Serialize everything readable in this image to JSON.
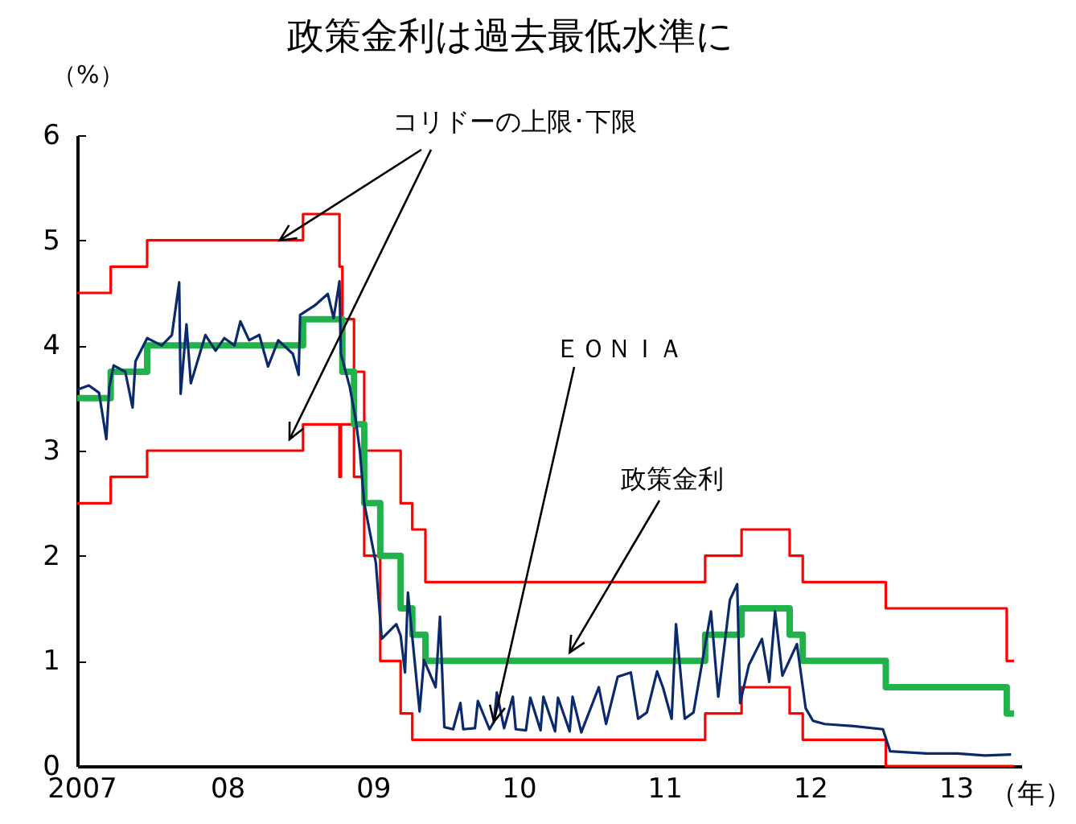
{
  "chart_data": {
    "type": "line",
    "title": "政策金利は過去最低水準に",
    "ylabel": "（%）",
    "xlabel": "（年）",
    "xlim": [
      2006.97,
      2013.45
    ],
    "ylim": [
      0,
      6
    ],
    "yticks": [
      0,
      1,
      2,
      3,
      4,
      5,
      6
    ],
    "xticks": [
      {
        "value": 2007,
        "label": "2007"
      },
      {
        "value": 2008,
        "label": "08"
      },
      {
        "value": 2009,
        "label": "09"
      },
      {
        "value": 2010,
        "label": "10"
      },
      {
        "value": 2011,
        "label": "11"
      },
      {
        "value": 2012,
        "label": "12"
      },
      {
        "value": 2013,
        "label": "13"
      }
    ],
    "grid": false,
    "annotations": [
      {
        "text": "コリドーの上限･下限",
        "x": 2008.36,
        "y": 5.0
      },
      {
        "text": "ＥＯＮＩＡ",
        "x": 2009.83,
        "y": 0.42
      },
      {
        "text": "政策金利",
        "x": 2010.35,
        "y": 1.08
      }
    ],
    "series": [
      {
        "type": "step",
        "color": "#ff0000",
        "x": [
          2006.97,
          2007.2,
          2007.45,
          2008.52,
          2008.77,
          2008.79,
          2008.87,
          2008.94,
          2009.19,
          2009.27,
          2009.36,
          2011.28,
          2011.53,
          2011.86,
          2011.95,
          2012.52,
          2013.35,
          2013.4
        ],
        "values": [
          4.5,
          4.75,
          5.0,
          5.25,
          4.75,
          4.25,
          3.75,
          3.0,
          2.5,
          2.25,
          1.75,
          2.0,
          2.25,
          2.0,
          1.75,
          1.5,
          1.0,
          1.0
        ]
      },
      {
        "type": "step",
        "color": "#ff0000",
        "x": [
          2006.97,
          2007.2,
          2007.45,
          2008.52,
          2008.77,
          2008.78,
          2008.87,
          2008.94,
          2009.05,
          2009.19,
          2009.27,
          2011.28,
          2011.53,
          2011.86,
          2011.95,
          2012.52,
          2013.4
        ],
        "values": [
          2.5,
          2.75,
          3.0,
          3.25,
          2.75,
          3.25,
          2.75,
          2.0,
          1.0,
          0.5,
          0.25,
          0.5,
          0.75,
          0.5,
          0.25,
          0,
          0
        ]
      },
      {
        "type": "step",
        "color": "#22b24c",
        "x": [
          2006.97,
          2007.2,
          2007.45,
          2008.52,
          2008.79,
          2008.87,
          2008.94,
          2009.05,
          2009.19,
          2009.27,
          2009.36,
          2011.28,
          2011.53,
          2011.86,
          2011.95,
          2012.52,
          2013.35,
          2013.4
        ],
        "values": [
          3.5,
          3.75,
          4.0,
          4.25,
          3.75,
          3.25,
          2.5,
          2.0,
          1.5,
          1.25,
          1.0,
          1.25,
          1.5,
          1.25,
          1.0,
          0.75,
          0.5,
          0.5
        ]
      },
      {
        "color": "#0b2a6b",
        "x": [
          2006.97,
          2007.05,
          2007.12,
          2007.17,
          2007.19,
          2007.22,
          2007.3,
          2007.35,
          2007.37,
          2007.45,
          2007.55,
          2007.62,
          2007.67,
          2007.68,
          2007.72,
          2007.75,
          2007.85,
          2007.92,
          2007.98,
          2008.05,
          2008.09,
          2008.15,
          2008.22,
          2008.28,
          2008.35,
          2008.45,
          2008.49,
          2008.5,
          2008.6,
          2008.69,
          2008.73,
          2008.77,
          2008.78,
          2008.84,
          2008.88,
          2008.91,
          2008.94,
          2009.02,
          2009.06,
          2009.16,
          2009.19,
          2009.22,
          2009.24,
          2009.32,
          2009.35,
          2009.43,
          2009.46,
          2009.49,
          2009.55,
          2009.6,
          2009.62,
          2009.7,
          2009.72,
          2009.8,
          2009.83,
          2009.85,
          2009.9,
          2009.96,
          2009.98,
          2010.05,
          2010.08,
          2010.15,
          2010.17,
          2010.25,
          2010.27,
          2010.35,
          2010.37,
          2010.43,
          2010.55,
          2010.6,
          2010.68,
          2010.77,
          2010.82,
          2010.88,
          2010.95,
          2010.99,
          2011.05,
          2011.08,
          2011.14,
          2011.2,
          2011.32,
          2011.37,
          2011.45,
          2011.5,
          2011.52,
          2011.58,
          2011.67,
          2011.72,
          2011.76,
          2011.81,
          2011.91,
          2011.97,
          2012.02,
          2012.1,
          2012.3,
          2012.5,
          2012.55,
          2012.8,
          2013.01,
          2013.2,
          2013.38
        ],
        "values": [
          3.58,
          3.62,
          3.55,
          3.11,
          3.6,
          3.81,
          3.75,
          3.41,
          3.85,
          4.07,
          4.0,
          4.1,
          4.6,
          3.54,
          4.2,
          3.64,
          4.1,
          3.95,
          4.07,
          4.0,
          4.23,
          4.05,
          4.1,
          3.8,
          4.05,
          3.92,
          3.72,
          4.29,
          4.38,
          4.49,
          4.26,
          4.61,
          3.92,
          3.61,
          3.31,
          3.0,
          2.5,
          1.93,
          1.21,
          1.35,
          1.24,
          0.89,
          1.65,
          0.52,
          1.01,
          0.75,
          1.42,
          0.37,
          0.35,
          0.6,
          0.35,
          0.36,
          0.62,
          0.35,
          0.42,
          0.7,
          0.36,
          0.66,
          0.35,
          0.34,
          0.65,
          0.34,
          0.66,
          0.33,
          0.65,
          0.33,
          0.66,
          0.32,
          0.75,
          0.4,
          0.85,
          0.89,
          0.45,
          0.51,
          0.9,
          0.75,
          0.45,
          1.35,
          0.45,
          0.51,
          1.47,
          0.66,
          1.58,
          1.73,
          0.6,
          0.96,
          1.21,
          0.8,
          1.47,
          0.86,
          1.16,
          0.55,
          0.43,
          0.4,
          0.38,
          0.35,
          0.14,
          0.12,
          0.12,
          0.1,
          0.11
        ]
      }
    ]
  }
}
